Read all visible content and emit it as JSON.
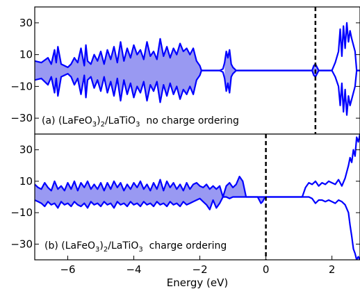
{
  "chart_data": [
    {
      "type": "area",
      "panel": "a",
      "annotation": "(a) (LaFeO3)2/LaTiO3 no charge ordering",
      "annotation_parts": {
        "prefix": "(a) (LaFeO",
        "sub1": "3",
        "mid1": ")",
        "sub2": "2",
        "mid2": "/LaTiO",
        "sub3": "3",
        "suffix": "  no charge ordering"
      },
      "xlim": [
        -7,
        2.85
      ],
      "ylim": [
        -40,
        40
      ],
      "yticks": [
        30,
        10,
        -10,
        -30
      ],
      "ytick_labels": [
        "30",
        "10",
        "−10",
        "−30"
      ],
      "fermi_level": 1.5,
      "fill_segments": [
        [
          -7,
          -1.95
        ],
        [
          -1.25,
          -0.9
        ],
        [
          1.4,
          1.6
        ]
      ],
      "series": [
        {
          "role": "spin-up",
          "x": [
            -7.0,
            -6.8,
            -6.6,
            -6.5,
            -6.4,
            -6.35,
            -6.3,
            -6.2,
            -6.0,
            -5.9,
            -5.8,
            -5.7,
            -5.6,
            -5.5,
            -5.45,
            -5.4,
            -5.3,
            -5.2,
            -5.1,
            -5.0,
            -4.9,
            -4.8,
            -4.7,
            -4.6,
            -4.5,
            -4.4,
            -4.3,
            -4.2,
            -4.1,
            -4.0,
            -3.9,
            -3.8,
            -3.7,
            -3.6,
            -3.5,
            -3.4,
            -3.3,
            -3.2,
            -3.1,
            -3.0,
            -2.9,
            -2.8,
            -2.7,
            -2.6,
            -2.5,
            -2.4,
            -2.3,
            -2.2,
            -2.1,
            -2.0,
            -1.95,
            -1.6,
            -1.4,
            -1.3,
            -1.25,
            -1.2,
            -1.15,
            -1.1,
            -1.05,
            -1.0,
            -0.95,
            -0.9,
            1.4,
            1.45,
            1.5,
            1.6,
            2.0,
            2.1,
            2.2,
            2.25,
            2.3,
            2.35,
            2.4,
            2.45,
            2.5,
            2.55,
            2.6,
            2.65,
            2.7,
            2.75,
            2.85
          ],
          "values": [
            6,
            5,
            8,
            4,
            13,
            5,
            15,
            4,
            2,
            4,
            8,
            5,
            14,
            3,
            16,
            6,
            4,
            10,
            6,
            12,
            4,
            13,
            7,
            15,
            5,
            18,
            6,
            14,
            8,
            16,
            10,
            13,
            7,
            18,
            9,
            12,
            7,
            20,
            9,
            15,
            8,
            14,
            10,
            17,
            12,
            14,
            10,
            14,
            6,
            3,
            0,
            0,
            0,
            1,
            5,
            12,
            8,
            13,
            4,
            2,
            1,
            0,
            0,
            3,
            4,
            0,
            0,
            5,
            12,
            26,
            9,
            28,
            14,
            30,
            18,
            25,
            20,
            16,
            12,
            0,
            0
          ]
        },
        {
          "role": "spin-down",
          "x": [
            -7.0,
            -6.8,
            -6.6,
            -6.5,
            -6.4,
            -6.35,
            -6.3,
            -6.2,
            -6.0,
            -5.9,
            -5.8,
            -5.7,
            -5.6,
            -5.5,
            -5.45,
            -5.4,
            -5.3,
            -5.2,
            -5.1,
            -5.0,
            -4.9,
            -4.8,
            -4.7,
            -4.6,
            -4.5,
            -4.4,
            -4.3,
            -4.2,
            -4.1,
            -4.0,
            -3.9,
            -3.8,
            -3.7,
            -3.6,
            -3.5,
            -3.4,
            -3.3,
            -3.2,
            -3.1,
            -3.0,
            -2.9,
            -2.8,
            -2.7,
            -2.6,
            -2.5,
            -2.4,
            -2.3,
            -2.2,
            -2.1,
            -2.0,
            -1.95,
            -1.6,
            -1.4,
            -1.3,
            -1.25,
            -1.2,
            -1.15,
            -1.1,
            -1.05,
            -1.0,
            -0.95,
            -0.9,
            1.4,
            1.45,
            1.5,
            1.6,
            2.0,
            2.1,
            2.2,
            2.25,
            2.3,
            2.35,
            2.4,
            2.45,
            2.5,
            2.55,
            2.6,
            2.65,
            2.7,
            2.75,
            2.85
          ],
          "values": [
            -6,
            -5,
            -9,
            -4,
            -14,
            -5,
            -16,
            -4,
            -2,
            -4,
            -9,
            -5,
            -15,
            -3,
            -17,
            -6,
            -4,
            -11,
            -6,
            -13,
            -4,
            -14,
            -7,
            -16,
            -5,
            -19,
            -6,
            -15,
            -8,
            -17,
            -10,
            -14,
            -7,
            -19,
            -9,
            -13,
            -7,
            -20,
            -9,
            -16,
            -8,
            -15,
            -10,
            -18,
            -12,
            -15,
            -10,
            -15,
            -6,
            -3,
            0,
            0,
            0,
            -1,
            -5,
            -13,
            -8,
            -14,
            -4,
            -2,
            -1,
            0,
            0,
            -3,
            -4,
            0,
            0,
            -4,
            -10,
            -22,
            -8,
            -26,
            -12,
            -28,
            -16,
            -22,
            -18,
            -14,
            -10,
            0,
            0
          ]
        }
      ]
    },
    {
      "type": "area",
      "panel": "b",
      "annotation": "(b) (LaFeO3)2/LaTiO3 charge ordering",
      "annotation_parts": {
        "prefix": "(b) (LaFeO",
        "sub1": "3",
        "mid1": ")",
        "sub2": "2",
        "mid2": "/LaTiO",
        "sub3": "3",
        "suffix": "  charge ordering"
      },
      "xlim": [
        -7,
        2.85
      ],
      "ylim": [
        -40,
        40
      ],
      "yticks": [
        30,
        10,
        -10,
        -30
      ],
      "ytick_labels": [
        "30",
        "10",
        "−10",
        "−30"
      ],
      "xticks": [
        -6,
        -4,
        -2,
        0,
        2
      ],
      "xtick_labels": [
        "−6",
        "−4",
        "−2",
        "0",
        "2"
      ],
      "xlabel": "Energy (eV)",
      "fermi_level": 0,
      "fill_segments": [
        [
          -7,
          -0.6
        ],
        [
          -0.25,
          -0.05
        ]
      ],
      "series": [
        {
          "role": "spin-up",
          "x": [
            -7.0,
            -6.9,
            -6.8,
            -6.7,
            -6.6,
            -6.5,
            -6.4,
            -6.3,
            -6.2,
            -6.1,
            -6.0,
            -5.9,
            -5.8,
            -5.7,
            -5.6,
            -5.5,
            -5.4,
            -5.3,
            -5.2,
            -5.1,
            -5.0,
            -4.9,
            -4.8,
            -4.7,
            -4.6,
            -4.5,
            -4.4,
            -4.3,
            -4.2,
            -4.1,
            -4.0,
            -3.9,
            -3.8,
            -3.7,
            -3.6,
            -3.5,
            -3.4,
            -3.3,
            -3.2,
            -3.1,
            -3.0,
            -2.9,
            -2.8,
            -2.7,
            -2.6,
            -2.5,
            -2.4,
            -2.3,
            -2.2,
            -2.1,
            -2.0,
            -1.9,
            -1.8,
            -1.7,
            -1.6,
            -1.5,
            -1.4,
            -1.3,
            -1.2,
            -1.1,
            -1.0,
            -0.9,
            -0.8,
            -0.7,
            -0.6,
            -0.5,
            -0.25,
            -0.2,
            -0.15,
            -0.1,
            -0.05,
            0.0,
            1.1,
            1.2,
            1.3,
            1.4,
            1.5,
            1.6,
            1.7,
            1.8,
            1.9,
            2.0,
            2.1,
            2.2,
            2.3,
            2.4,
            2.5,
            2.55,
            2.6,
            2.65,
            2.7,
            2.75,
            2.8,
            2.85
          ],
          "values": [
            8,
            6,
            5,
            9,
            6,
            4,
            10,
            5,
            7,
            4,
            9,
            5,
            10,
            4,
            9,
            6,
            10,
            5,
            8,
            5,
            9,
            4,
            9,
            5,
            10,
            6,
            9,
            4,
            8,
            5,
            9,
            6,
            10,
            5,
            8,
            4,
            9,
            5,
            11,
            4,
            10,
            6,
            9,
            5,
            8,
            4,
            9,
            5,
            8,
            9,
            7,
            6,
            8,
            5,
            7,
            5,
            7,
            0,
            7,
            9,
            6,
            8,
            13,
            10,
            0,
            0,
            0,
            0,
            0,
            0,
            0,
            0,
            0,
            6,
            9,
            8,
            10,
            7,
            9,
            8,
            10,
            9,
            8,
            11,
            7,
            12,
            20,
            25,
            22,
            30,
            26,
            38,
            35,
            40
          ]
        },
        {
          "role": "spin-down",
          "x": [
            -7.0,
            -6.9,
            -6.8,
            -6.7,
            -6.6,
            -6.5,
            -6.4,
            -6.3,
            -6.2,
            -6.1,
            -6.0,
            -5.9,
            -5.8,
            -5.7,
            -5.6,
            -5.5,
            -5.4,
            -5.3,
            -5.2,
            -5.1,
            -5.0,
            -4.9,
            -4.8,
            -4.7,
            -4.6,
            -4.5,
            -4.4,
            -4.3,
            -4.2,
            -4.1,
            -4.0,
            -3.9,
            -3.8,
            -3.7,
            -3.6,
            -3.5,
            -3.4,
            -3.3,
            -3.2,
            -3.1,
            -3.0,
            -2.9,
            -2.8,
            -2.7,
            -2.6,
            -2.5,
            -2.4,
            -2.3,
            -2.2,
            -2.1,
            -2.0,
            -1.9,
            -1.8,
            -1.7,
            -1.6,
            -1.5,
            -1.4,
            -1.3,
            -1.2,
            -1.1,
            -1.0,
            -0.9,
            -0.8,
            -0.7,
            -0.6,
            -0.5,
            -0.25,
            -0.2,
            -0.15,
            -0.1,
            -0.05,
            0.0,
            1.1,
            1.2,
            1.3,
            1.4,
            1.5,
            1.6,
            1.7,
            1.8,
            1.9,
            2.0,
            2.1,
            2.2,
            2.3,
            2.4,
            2.5,
            2.55,
            2.6,
            2.65,
            2.7,
            2.75,
            2.8,
            2.85
          ],
          "values": [
            -2,
            -3,
            -4,
            -6,
            -3,
            -5,
            -4,
            -7,
            -3,
            -5,
            -4,
            -6,
            -3,
            -5,
            -6,
            -4,
            -7,
            -3,
            -5,
            -4,
            -6,
            -3,
            -5,
            -4,
            -7,
            -3,
            -5,
            -4,
            -6,
            -3,
            -5,
            -4,
            -6,
            -3,
            -5,
            -4,
            -6,
            -3,
            -5,
            -4,
            -6,
            -3,
            -5,
            -4,
            -6,
            -3,
            -5,
            -4,
            -3,
            -2,
            -1,
            -3,
            -5,
            -8,
            -2,
            -7,
            -4,
            0,
            0,
            -1,
            0,
            0,
            0,
            0,
            0,
            0,
            0,
            -2,
            -4,
            -3,
            -1,
            0,
            0,
            0,
            0,
            -1,
            -4,
            -2,
            -2,
            -3,
            -2,
            -3,
            -4,
            -2,
            -3,
            -5,
            -10,
            -18,
            -25,
            -33,
            -36,
            -40,
            -38,
            -40
          ]
        }
      ]
    }
  ]
}
